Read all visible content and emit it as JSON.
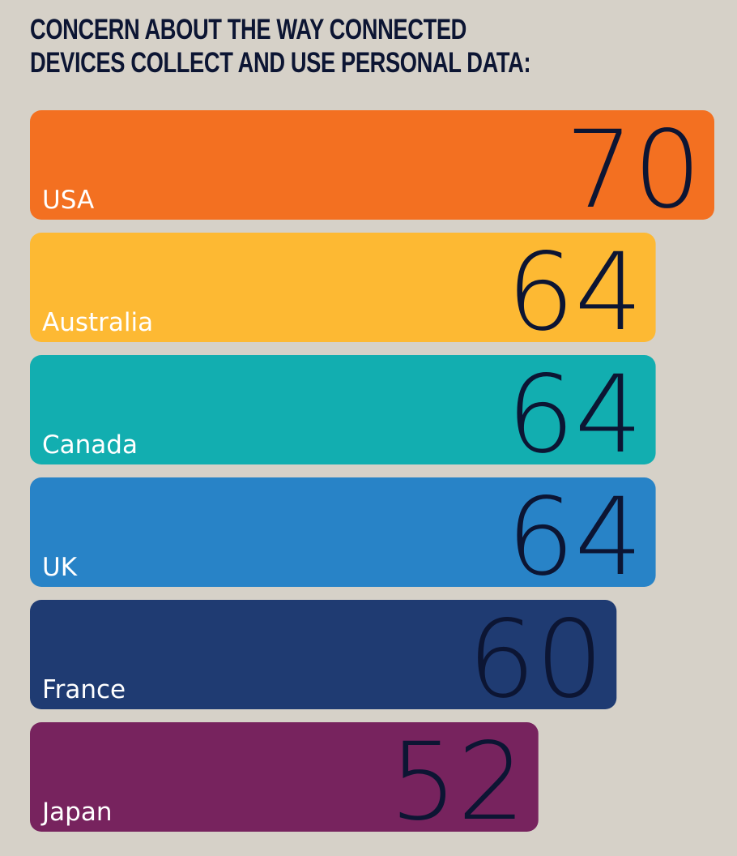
{
  "chart_data": {
    "type": "bar",
    "orientation": "horizontal",
    "title": "Concern about the way connected devices collect and use personal data:",
    "categories": [
      "USA",
      "Australia",
      "Canada",
      "UK",
      "France",
      "Japan"
    ],
    "values": [
      70,
      64,
      64,
      64,
      60,
      52
    ],
    "colors": [
      "#f37021",
      "#fdb933",
      "#12aeb0",
      "#2883c7",
      "#1f3b72",
      "#77235e"
    ],
    "value_color": "#0c1533",
    "xlim": [
      0,
      70
    ]
  }
}
